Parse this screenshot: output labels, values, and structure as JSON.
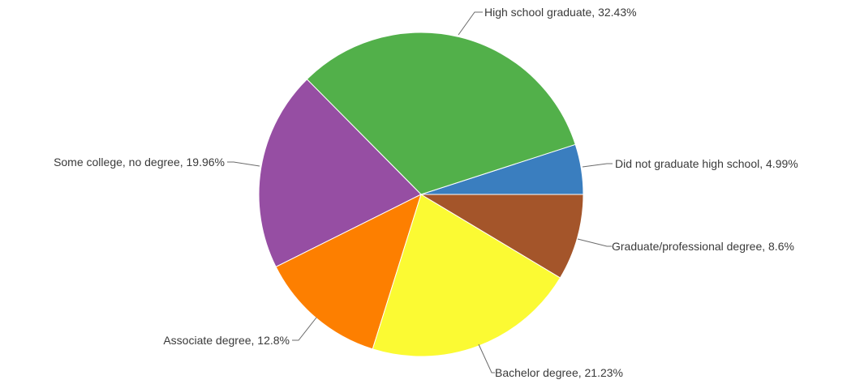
{
  "chart_data": {
    "type": "pie",
    "title": "",
    "slices": [
      {
        "label": "Did not graduate high school",
        "value": 4.99,
        "display": "Did not graduate high school, 4.99%",
        "color": "#3a7ebf"
      },
      {
        "label": "High school graduate",
        "value": 32.43,
        "display": "High school graduate, 32.43%",
        "color": "#52b04a"
      },
      {
        "label": "Some college, no degree",
        "value": 19.96,
        "display": "Some college, no degree, 19.96%",
        "color": "#964ea3"
      },
      {
        "label": "Associate degree",
        "value": 12.8,
        "display": "Associate degree, 12.8%",
        "color": "#fd7f00"
      },
      {
        "label": "Bachelor degree",
        "value": 21.23,
        "display": "Bachelor degree, 21.23%",
        "color": "#fbfa33"
      },
      {
        "label": "Graduate/professional degree",
        "value": 8.6,
        "display": "Graduate/professional degree, 8.6%",
        "color": "#a4552a"
      }
    ]
  }
}
